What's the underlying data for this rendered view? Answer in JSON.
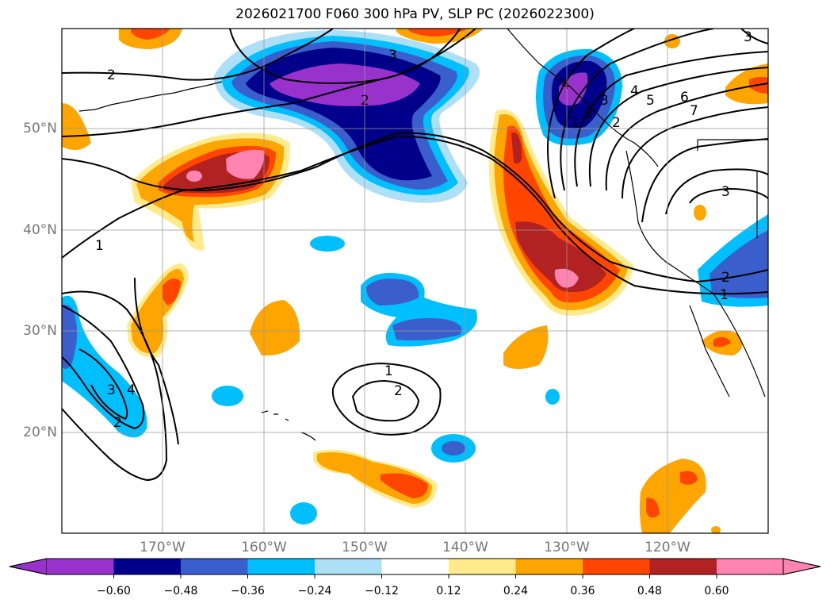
{
  "title": "2026021700 F060 300 hPa PV, SLP PC (2026022300)",
  "lat_labels": [
    "50°N",
    "40°N",
    "30°N",
    "20°N"
  ],
  "lon_labels": [
    "170°W",
    "160°W",
    "150°W",
    "140°W",
    "130°W",
    "120°W"
  ],
  "colorbar": {
    "ticks": [
      "−0.60",
      "−0.48",
      "−0.36",
      "−0.24",
      "−0.12",
      "0.12",
      "0.24",
      "0.36",
      "0.48",
      "0.60"
    ],
    "colors": [
      "#9932CC",
      "#00008B",
      "#3A5FCD",
      "#00BFFF",
      "#ADDFF7",
      "#FFFFFF",
      "#FFEB8C",
      "#FFA500",
      "#FF4500",
      "#B22222",
      "#FF85B0",
      "#FF85B0"
    ]
  },
  "contour_labels": [
    "1",
    "2",
    "3",
    "4",
    "5",
    "6",
    "7",
    "2",
    "3",
    "4",
    "3",
    "2",
    "1",
    "2",
    "1",
    "2",
    "3",
    "3",
    "4",
    "2",
    "1",
    "2"
  ]
}
